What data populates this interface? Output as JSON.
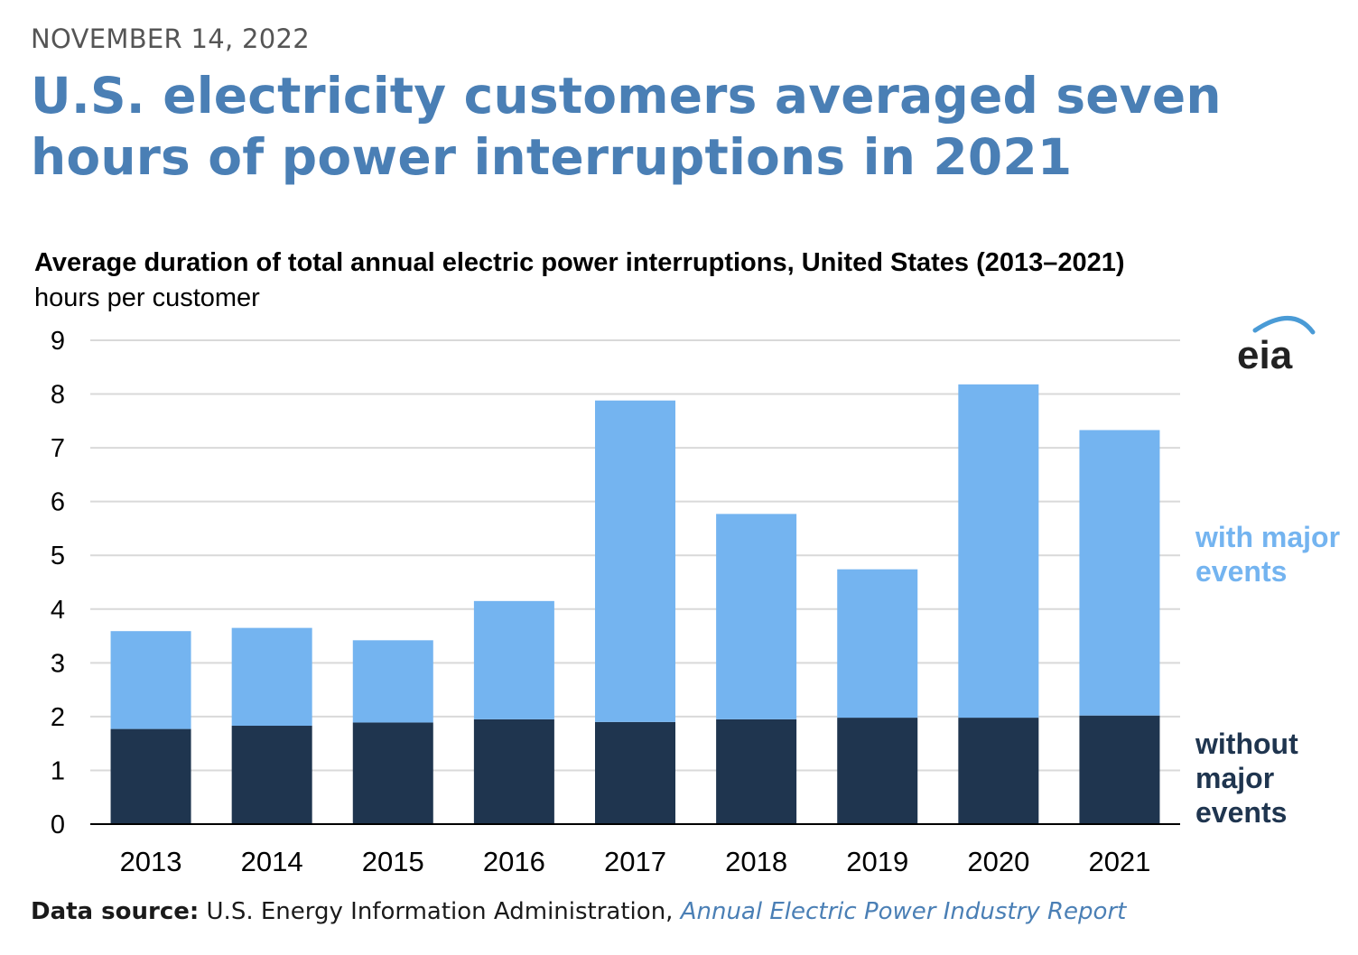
{
  "header": {
    "date": "NOVEMBER 14, 2022",
    "headline": "U.S. electricity customers averaged seven hours of power interruptions in 2021"
  },
  "chart_data": {
    "type": "bar",
    "stacked": true,
    "title": "Average duration of total annual electric power interruptions, United States (2013–2021)",
    "ylabel": "hours per customer",
    "ylim": [
      0,
      9
    ],
    "yticks": [
      "0",
      "1",
      "2",
      "3",
      "4",
      "5",
      "6",
      "7",
      "8",
      "9"
    ],
    "categories": [
      "2013",
      "2014",
      "2015",
      "2016",
      "2017",
      "2018",
      "2019",
      "2020",
      "2021"
    ],
    "grid": true,
    "series": [
      {
        "name": "without major events",
        "color": "#1f354f",
        "values": [
          1.77,
          1.83,
          1.89,
          1.95,
          1.9,
          1.95,
          1.98,
          1.98,
          2.02
        ]
      },
      {
        "name": "with major events",
        "color": "#74b4f0",
        "values": [
          1.82,
          1.82,
          1.53,
          2.2,
          5.98,
          3.82,
          2.76,
          6.2,
          5.31
        ]
      }
    ],
    "legend_placement": "right"
  },
  "legend": {
    "with_major": [
      "with major",
      "events"
    ],
    "without_major": [
      "without",
      "major",
      "events"
    ]
  },
  "logo": {
    "text": "eia"
  },
  "footer": {
    "label": "Data source:",
    "text": " U.S. Energy Information Administration, ",
    "link": "Annual Electric Power Industry Report"
  }
}
